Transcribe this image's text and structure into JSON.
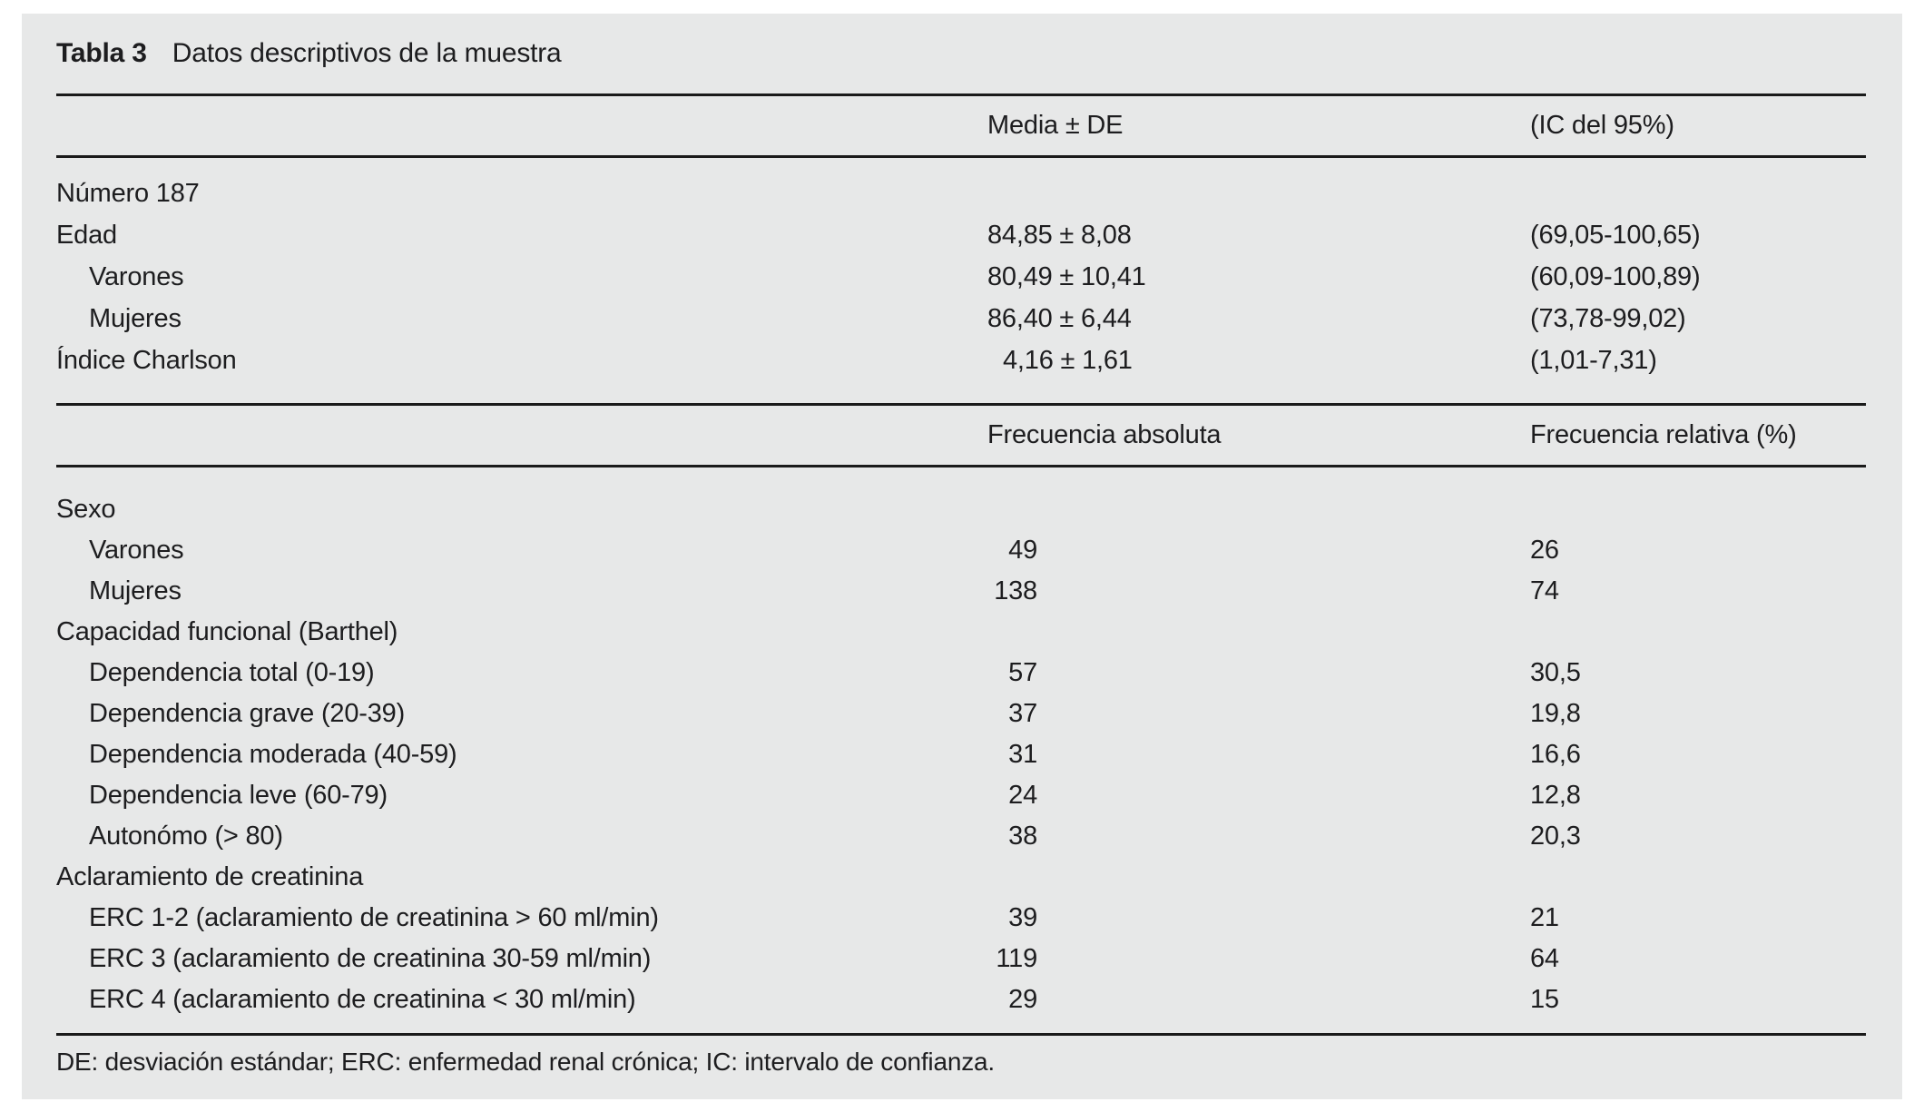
{
  "title": {
    "label": "Tabla 3",
    "text": "Datos descriptivos de la muestra"
  },
  "colors": {
    "panel_bg": "#e7e8e8",
    "text": "#1d1d1f",
    "rule": "#1a1a1a"
  },
  "section1": {
    "col2_header": "Media ± DE",
    "col3_header": "(IC del 95%)",
    "rows": [
      {
        "label": "Número 187",
        "indent": false,
        "mean": "",
        "ci": ""
      },
      {
        "label": "Edad",
        "indent": false,
        "mean": "84,85 ± 8,08",
        "ci": "(69,05-100,65)"
      },
      {
        "label": "Varones",
        "indent": true,
        "mean": "80,49 ± 10,41",
        "ci": "(60,09-100,89)"
      },
      {
        "label": "Mujeres",
        "indent": true,
        "mean": "86,40 ± 6,44",
        "ci": "(73,78-99,02)"
      },
      {
        "label": "Índice Charlson",
        "indent": false,
        "num_indent": true,
        "mean": "4,16 ± 1,61",
        "ci": "(1,01-7,31)"
      }
    ]
  },
  "section2": {
    "col2_header": "Frecuencia absoluta",
    "col3_header": "Frecuencia relativa (%)",
    "rows": [
      {
        "label": "Sexo",
        "indent": false,
        "abs": "",
        "rel": ""
      },
      {
        "label": "Varones",
        "indent": true,
        "abs": "49",
        "rel": "26"
      },
      {
        "label": "Mujeres",
        "indent": true,
        "abs": "138",
        "rel": "74"
      },
      {
        "label": "Capacidad funcional (Barthel)",
        "indent": false,
        "abs": "",
        "rel": ""
      },
      {
        "label": "Dependencia total (0-19)",
        "indent": true,
        "abs": "57",
        "rel": "30,5"
      },
      {
        "label": "Dependencia grave (20-39)",
        "indent": true,
        "abs": "37",
        "rel": "19,8"
      },
      {
        "label": "Dependencia moderada (40-59)",
        "indent": true,
        "abs": "31",
        "rel": "16,6"
      },
      {
        "label": "Dependencia leve (60-79)",
        "indent": true,
        "abs": "24",
        "rel": "12,8"
      },
      {
        "label": "Autonómo (> 80)",
        "indent": true,
        "abs": "38",
        "rel": "20,3"
      },
      {
        "label": "Aclaramiento de creatinina",
        "indent": false,
        "abs": "",
        "rel": ""
      },
      {
        "label": "ERC 1-2 (aclaramiento de creatinina > 60 ml/min)",
        "indent": true,
        "abs": "39",
        "rel": "21"
      },
      {
        "label": "ERC 3 (aclaramiento de creatinina 30-59 ml/min)",
        "indent": true,
        "abs": "119",
        "rel": "64"
      },
      {
        "label": "ERC 4 (aclaramiento de creatinina < 30 ml/min)",
        "indent": true,
        "abs": "29",
        "rel": "15"
      }
    ]
  },
  "footnote": "DE: desviación estándar; ERC: enfermedad renal crónica; IC: intervalo de confianza."
}
